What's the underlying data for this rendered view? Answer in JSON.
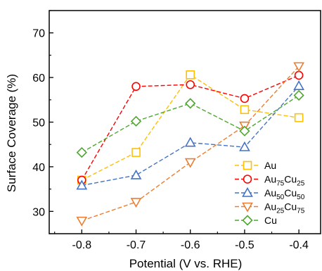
{
  "chart_data": {
    "type": "line",
    "title": "",
    "xlabel": "Potential (V vs. RHE)",
    "ylabel": "Surface Coverage (%)",
    "x": [
      -0.8,
      -0.7,
      -0.6,
      -0.5,
      -0.4
    ],
    "x_tick_labels": [
      "-0.8",
      "-0.7",
      "-0.6",
      "-0.5",
      "-0.4"
    ],
    "y_ticks": [
      30,
      40,
      50,
      60,
      70
    ],
    "y_tick_labels": [
      "30",
      "40",
      "50",
      "60",
      "70"
    ],
    "xlim": [
      -0.86,
      -0.36
    ],
    "ylim": [
      25,
      75
    ],
    "grid": false,
    "legend_position": "bottom-right",
    "series": [
      {
        "name": "Au",
        "legend": {
          "base": "Au"
        },
        "color": "#FFC000",
        "marker": "square",
        "values": [
          37.0,
          43.2,
          60.6,
          52.8,
          51.0
        ]
      },
      {
        "name": "Au75Cu25",
        "legend": {
          "base": "Au",
          "sub1": "75",
          "mid": "Cu",
          "sub2": "25"
        },
        "color": "#FF0000",
        "marker": "circle",
        "values": [
          37.0,
          58.0,
          58.4,
          55.3,
          60.5
        ]
      },
      {
        "name": "Au50Cu50",
        "legend": {
          "base": "Au",
          "sub1": "50",
          "mid": "Cu",
          "sub2": "50"
        },
        "color": "#4472C4",
        "marker": "triangle-up",
        "values": [
          35.8,
          38.1,
          45.4,
          44.4,
          58.1
        ]
      },
      {
        "name": "Au25Cu75",
        "legend": {
          "base": "Au",
          "sub1": "25",
          "mid": "Cu",
          "sub2": "75"
        },
        "color": "#ED7D31",
        "marker": "triangle-down",
        "values": [
          27.9,
          32.1,
          41.0,
          49.2,
          62.5
        ]
      },
      {
        "name": "Cu",
        "legend": {
          "base": "Cu"
        },
        "color": "#4EA72E",
        "marker": "diamond",
        "values": [
          43.2,
          50.2,
          54.2,
          48.0,
          56.0
        ]
      }
    ]
  }
}
